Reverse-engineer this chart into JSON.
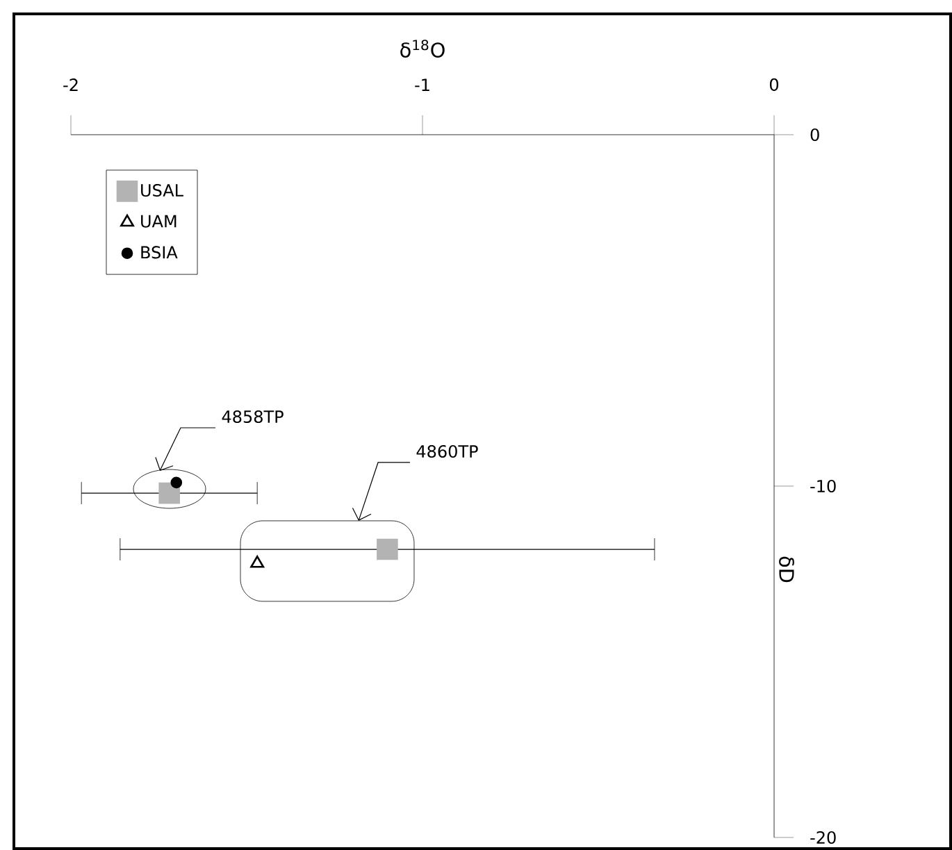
{
  "chart_data": {
    "type": "scatter",
    "xlabel": "δ$^{18}$O",
    "ylabel": "δD",
    "xlim": [
      -2,
      0
    ],
    "ylim": [
      -20,
      0
    ],
    "xticks": [
      -2,
      -1,
      0
    ],
    "yticks": [
      0,
      -10,
      -20
    ],
    "grid": false,
    "legend": "top left",
    "series": [
      {
        "name": "USAL",
        "color": "#b3b3b3",
        "marker": "square",
        "x": [
          -1.72,
          -1.1
        ],
        "values": [
          -10.2,
          -11.8
        ],
        "xerrors": [
          0.25,
          0.76
        ]
      },
      {
        "name": "UAM",
        "color": "#000000",
        "marker": "triangle",
        "x": [
          -1.47
        ],
        "values": [
          -12.2
        ]
      },
      {
        "name": "BSIA",
        "color": "#000000",
        "marker": "circle",
        "x": [
          -1.7
        ],
        "values": [
          -9.9
        ]
      }
    ],
    "annotations": [
      "4858TP",
      "4860TP"
    ]
  }
}
